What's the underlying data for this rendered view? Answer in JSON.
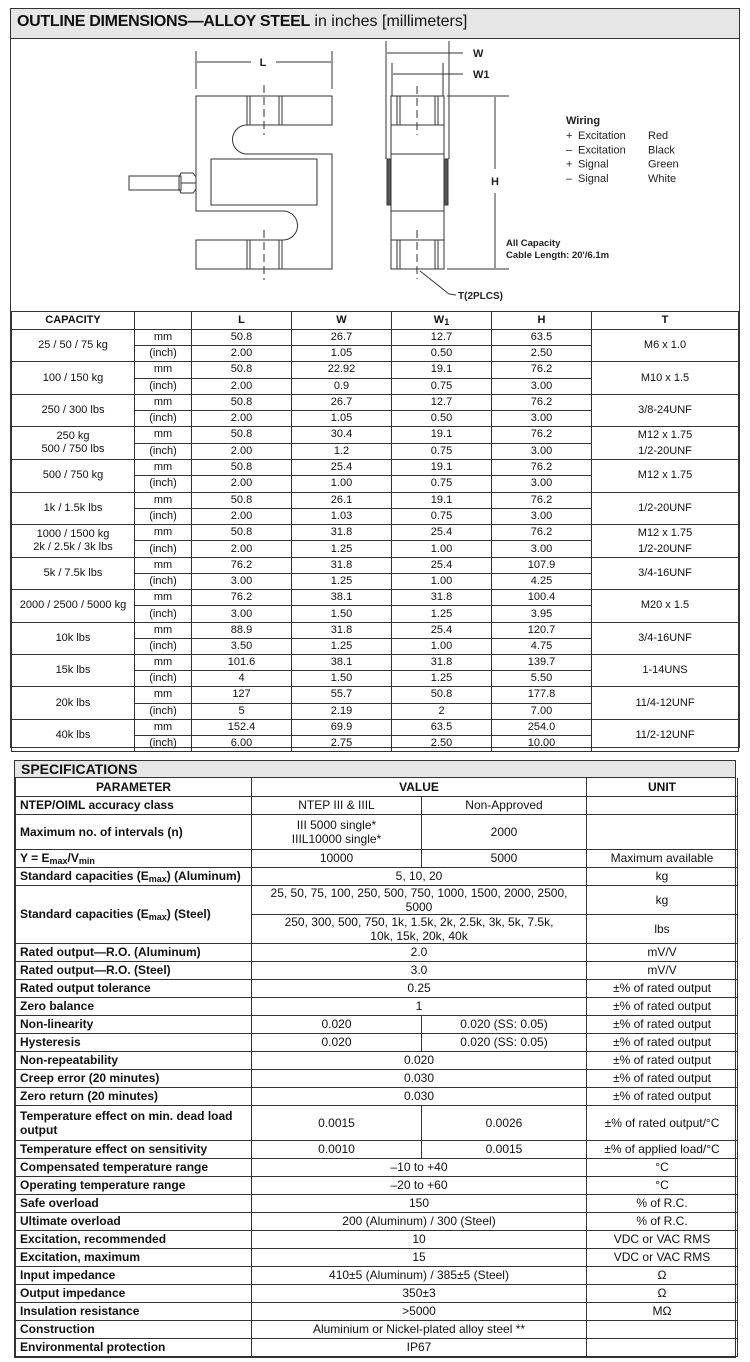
{
  "outline": {
    "title_bold": "OUTLINE DIMENSIONS—ALLOY STEEL",
    "title_light": " in inches [millimeters]",
    "drawing": {
      "label_L": "L",
      "label_W": "W",
      "label_W1": "W1",
      "label_H": "H",
      "label_T": "T(2PLCS)",
      "wiring": {
        "title": "Wiring",
        "rows": [
          {
            "sign": "+",
            "name": "Excitation",
            "color": "Red"
          },
          {
            "sign": "–",
            "name": "Excitation",
            "color": "Black"
          },
          {
            "sign": "+",
            "name": "Signal",
            "color": "Green"
          },
          {
            "sign": "–",
            "name": "Signal",
            "color": "White"
          }
        ]
      },
      "cable_line1": "All Capacity",
      "cable_line2": "Cable Length: 20'/6.1m"
    },
    "table": {
      "headers": {
        "capacity": "CAPACITY",
        "unit": "",
        "L": "L",
        "W": "W",
        "W1_main": "W",
        "W1_sub": "1",
        "H": "H",
        "T": "T"
      },
      "unit_mm": "mm",
      "unit_inch": "(inch)",
      "groups": [
        {
          "capacity": [
            "25 / 50 / 75 kg"
          ],
          "mm": [
            "50.8",
            "26.7",
            "12.7",
            "63.5"
          ],
          "inch": [
            "2.00",
            "1.05",
            "0.50",
            "2.50"
          ],
          "T": [
            "M6 x 1.0"
          ]
        },
        {
          "capacity": [
            "100 / 150 kg"
          ],
          "mm": [
            "50.8",
            "22.92",
            "19.1",
            "76.2"
          ],
          "inch": [
            "2.00",
            "0.9",
            "0.75",
            "3.00"
          ],
          "T": [
            "M10 x 1.5"
          ]
        },
        {
          "capacity": [
            "250 / 300 lbs"
          ],
          "mm": [
            "50.8",
            "26.7",
            "12.7",
            "76.2"
          ],
          "inch": [
            "2.00",
            "1.05",
            "0.50",
            "3.00"
          ],
          "T": [
            "3/8-24UNF"
          ]
        },
        {
          "capacity": [
            "250 kg",
            "500 / 750 lbs"
          ],
          "mm": [
            "50.8",
            "30.4",
            "19.1",
            "76.2"
          ],
          "inch": [
            "2.00",
            "1.2",
            "0.75",
            "3.00"
          ],
          "T": [
            "M12 x 1.75",
            "1/2-20UNF"
          ]
        },
        {
          "capacity": [
            "500 / 750 kg"
          ],
          "mm": [
            "50.8",
            "25.4",
            "19.1",
            "76.2"
          ],
          "inch": [
            "2.00",
            "1.00",
            "0.75",
            "3.00"
          ],
          "T": [
            "M12 x 1.75"
          ]
        },
        {
          "capacity": [
            "1k / 1.5k lbs"
          ],
          "mm": [
            "50.8",
            "26.1",
            "19.1",
            "76.2"
          ],
          "inch": [
            "2.00",
            "1.03",
            "0.75",
            "3.00"
          ],
          "T": [
            "1/2-20UNF"
          ]
        },
        {
          "capacity": [
            "1000 / 1500 kg",
            "2k / 2.5k / 3k lbs"
          ],
          "mm": [
            "50.8",
            "31.8",
            "25.4",
            "76.2"
          ],
          "inch": [
            "2.00",
            "1.25",
            "1.00",
            "3.00"
          ],
          "T": [
            "M12 x 1.75",
            "1/2-20UNF"
          ]
        },
        {
          "capacity": [
            "5k / 7.5k lbs"
          ],
          "mm": [
            "76.2",
            "31.8",
            "25.4",
            "107.9"
          ],
          "inch": [
            "3.00",
            "1.25",
            "1.00",
            "4.25"
          ],
          "T": [
            "3/4-16UNF"
          ]
        },
        {
          "capacity": [
            "2000 / 2500 / 5000 kg"
          ],
          "mm": [
            "76.2",
            "38.1",
            "31.8",
            "100.4"
          ],
          "inch": [
            "3.00",
            "1.50",
            "1.25",
            "3.95"
          ],
          "T": [
            "M20 x 1.5"
          ]
        },
        {
          "capacity": [
            "10k lbs"
          ],
          "mm": [
            "88.9",
            "31.8",
            "25.4",
            "120.7"
          ],
          "inch": [
            "3.50",
            "1.25",
            "1.00",
            "4.75"
          ],
          "T": [
            "3/4-16UNF"
          ]
        },
        {
          "capacity": [
            "15k lbs"
          ],
          "mm": [
            "101.6",
            "38.1",
            "31.8",
            "139.7"
          ],
          "inch": [
            "4",
            "1.50",
            "1.25",
            "5.50"
          ],
          "T": [
            "1-14UNS"
          ]
        },
        {
          "capacity": [
            "20k lbs"
          ],
          "mm": [
            "127",
            "55.7",
            "50.8",
            "177.8"
          ],
          "inch": [
            "5",
            "2.19",
            "2",
            "7.00"
          ],
          "T": [
            "11/4-12UNF"
          ]
        },
        {
          "capacity": [
            "40k lbs"
          ],
          "mm": [
            "152.4",
            "69.9",
            "63.5",
            "254.0"
          ],
          "inch": [
            "6.00",
            "2.75",
            "2.50",
            "10.00"
          ],
          "T": [
            "11/2-12UNF"
          ]
        }
      ]
    }
  },
  "specifications": {
    "title": "SPECIFICATIONS",
    "headers": {
      "parameter": "PARAMETER",
      "value": "VALUE",
      "unit": "UNIT"
    },
    "rows": [
      {
        "param": [
          {
            "t": "NTEP/OIML accuracy class"
          }
        ],
        "values": [
          "NTEP III & IIIL",
          "Non-Approved"
        ],
        "unit": ""
      },
      {
        "param": [
          {
            "t": "Maximum no. of intervals (n)"
          }
        ],
        "values": [
          [
            "III 5000 single*",
            "IIIL10000 single*"
          ],
          "2000"
        ],
        "unit": "",
        "tall": true
      },
      {
        "param": [
          {
            "t": "Y = E"
          },
          {
            "t": "max",
            "sub": true
          },
          {
            "t": "/V"
          },
          {
            "t": "min",
            "sub": true
          }
        ],
        "values": [
          "10000",
          "5000"
        ],
        "unit": "Maximum available"
      },
      {
        "param": [
          {
            "t": "Standard capacities (E"
          },
          {
            "t": "max",
            "sub": true
          },
          {
            "t": ") (Aluminum)"
          }
        ],
        "values": [
          "5, 10, 20"
        ],
        "unit": "kg"
      },
      {
        "param": [
          {
            "t": "Standard capacities (E"
          },
          {
            "t": "max",
            "sub": true
          },
          {
            "t": ") (Steel)"
          }
        ],
        "sub_rows": [
          {
            "value": [
              "25, 50, 75, 100, 250, 500, 750, 1000, 1500, 2000, 2500, 5000"
            ],
            "unit": "kg"
          },
          {
            "value": [
              "250, 300, 500, 750, 1k, 1.5k, 2k, 2.5k, 3k, 5k, 7.5k,",
              "10k, 15k, 20k, 40k"
            ],
            "unit": "lbs"
          }
        ]
      },
      {
        "param": [
          {
            "t": "Rated output—R.O. (Aluminum)"
          }
        ],
        "values": [
          "2.0"
        ],
        "unit": "mV/V"
      },
      {
        "param": [
          {
            "t": "Rated output—R.O. (Steel)"
          }
        ],
        "values": [
          "3.0"
        ],
        "unit": "mV/V"
      },
      {
        "param": [
          {
            "t": "Rated output tolerance"
          }
        ],
        "values": [
          "0.25"
        ],
        "unit": "±% of rated output"
      },
      {
        "param": [
          {
            "t": "Zero balance"
          }
        ],
        "values": [
          "1"
        ],
        "unit": "±% of rated output"
      },
      {
        "param": [
          {
            "t": "Non-linearity"
          }
        ],
        "values": [
          "0.020",
          "0.020 (SS: 0.05)"
        ],
        "unit": "±% of rated output"
      },
      {
        "param": [
          {
            "t": "Hysteresis"
          }
        ],
        "values": [
          "0.020",
          "0.020 (SS: 0.05)"
        ],
        "unit": "±% of rated output"
      },
      {
        "param": [
          {
            "t": "Non-repeatability"
          }
        ],
        "values": [
          "0.020"
        ],
        "unit": "±% of rated output"
      },
      {
        "param": [
          {
            "t": "Creep error (20 minutes)"
          }
        ],
        "values": [
          "0.030"
        ],
        "unit": "±% of rated output"
      },
      {
        "param": [
          {
            "t": "Zero return (20 minutes)"
          }
        ],
        "values": [
          "0.030"
        ],
        "unit": "±% of rated output"
      },
      {
        "param": [
          {
            "t": "Temperature effect on min. dead load output"
          }
        ],
        "values": [
          "0.0015",
          "0.0026"
        ],
        "unit": "±% of rated output/°C",
        "tall": true
      },
      {
        "param": [
          {
            "t": "Temperature effect on sensitivity"
          }
        ],
        "values": [
          "0.0010",
          "0.0015"
        ],
        "unit": "±% of applied load/°C"
      },
      {
        "param": [
          {
            "t": "Compensated temperature range"
          }
        ],
        "values": [
          "–10 to +40"
        ],
        "unit": "°C"
      },
      {
        "param": [
          {
            "t": "Operating temperature range"
          }
        ],
        "values": [
          "–20 to +60"
        ],
        "unit": "°C"
      },
      {
        "param": [
          {
            "t": "Safe overload"
          }
        ],
        "values": [
          "150"
        ],
        "unit": "% of R.C."
      },
      {
        "param": [
          {
            "t": "Ultimate overload"
          }
        ],
        "values": [
          "200 (Aluminum) / 300 (Steel)"
        ],
        "unit": "% of R.C."
      },
      {
        "param": [
          {
            "t": "Excitation, recommended"
          }
        ],
        "values": [
          "10"
        ],
        "unit": "VDC or VAC RMS"
      },
      {
        "param": [
          {
            "t": "Excitation, maximum"
          }
        ],
        "values": [
          "15"
        ],
        "unit": "VDC or VAC RMS"
      },
      {
        "param": [
          {
            "t": "Input impedance"
          }
        ],
        "values": [
          "410±5 (Aluminum) / 385±5 (Steel)"
        ],
        "unit": "Ω"
      },
      {
        "param": [
          {
            "t": "Output impedance"
          }
        ],
        "values": [
          "350±3"
        ],
        "unit": "Ω"
      },
      {
        "param": [
          {
            "t": "Insulation resistance"
          }
        ],
        "values": [
          ">5000"
        ],
        "unit": "MΩ"
      },
      {
        "param": [
          {
            "t": "Construction"
          }
        ],
        "values": [
          "Aluminium or Nickel-plated alloy steel **"
        ],
        "unit": ""
      },
      {
        "param": [
          {
            "t": "Environmental protection"
          }
        ],
        "values": [
          "IP67"
        ],
        "unit": ""
      }
    ]
  }
}
